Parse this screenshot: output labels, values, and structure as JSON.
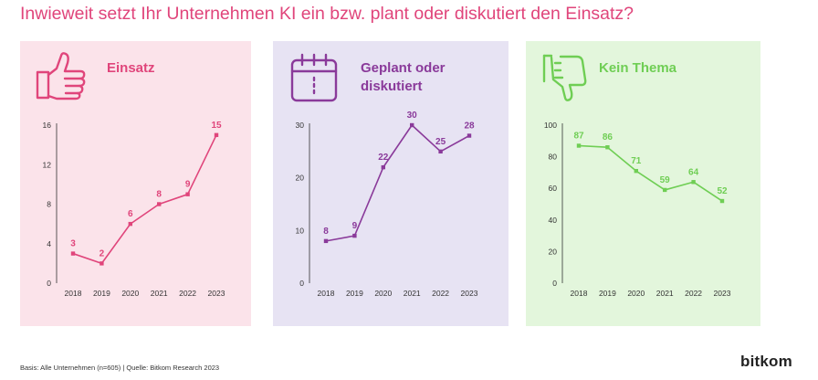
{
  "title": "Inwieweit setzt Ihr Unternehmen KI ein bzw. plant oder diskutiert den Einsatz?",
  "footer": "Basis: Alle Unternehmen (n=605) | Quelle: Bitkom Research 2023",
  "logo": "bitkom",
  "colors": {
    "title": "#e0457b",
    "axis": "#333333",
    "tick_text": "#333333"
  },
  "panels": [
    {
      "id": "einsatz",
      "title_lines": [
        "Einsatz"
      ],
      "icon": "thumbs-up-icon",
      "accent": "#e0457b",
      "background": "#fbe3ea"
    },
    {
      "id": "geplant",
      "title_lines": [
        "Geplant oder",
        "diskutiert"
      ],
      "icon": "calendar-icon",
      "accent": "#8a3a9a",
      "background": "#e7e3f3"
    },
    {
      "id": "kein-thema",
      "title_lines": [
        "Kein Thema"
      ],
      "icon": "thumbs-down-icon",
      "accent": "#6fce54",
      "background": "#e3f6dc"
    }
  ],
  "chart_data": [
    {
      "type": "line",
      "x": [
        "2018",
        "2019",
        "2020",
        "2021",
        "2022",
        "2023"
      ],
      "series": [
        {
          "values": [
            3,
            2,
            6,
            8,
            9,
            15
          ]
        }
      ],
      "yticks": [
        0,
        4,
        8,
        12,
        16
      ],
      "ylim": [
        0,
        16
      ],
      "grid": false
    },
    {
      "type": "line",
      "x": [
        "2018",
        "2019",
        "2020",
        "2021",
        "2022",
        "2023"
      ],
      "series": [
        {
          "values": [
            8,
            9,
            22,
            30,
            25,
            28
          ]
        }
      ],
      "yticks": [
        0,
        10,
        20,
        30
      ],
      "ylim": [
        0,
        30
      ],
      "grid": false
    },
    {
      "type": "line",
      "x": [
        "2018",
        "2019",
        "2020",
        "2021",
        "2022",
        "2023"
      ],
      "series": [
        {
          "values": [
            87,
            86,
            71,
            59,
            64,
            52
          ]
        }
      ],
      "yticks": [
        0,
        20,
        40,
        60,
        80,
        100
      ],
      "ylim": [
        0,
        100
      ],
      "grid": false
    }
  ]
}
